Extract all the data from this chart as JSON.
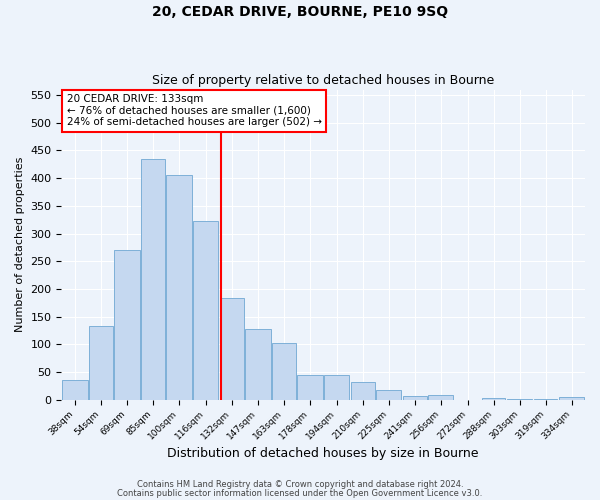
{
  "title": "20, CEDAR DRIVE, BOURNE, PE10 9SQ",
  "subtitle": "Size of property relative to detached houses in Bourne",
  "xlabel": "Distribution of detached houses by size in Bourne",
  "ylabel": "Number of detached properties",
  "bar_color": "#c5d8f0",
  "bar_edge_color": "#7eb0d8",
  "reference_line_x": 133,
  "annotation_title": "20 CEDAR DRIVE: 133sqm",
  "annotation_line1": "← 76% of detached houses are smaller (1,600)",
  "annotation_line2": "24% of semi-detached houses are larger (502) →",
  "footer1": "Contains HM Land Registry data © Crown copyright and database right 2024.",
  "footer2": "Contains public sector information licensed under the Open Government Licence v3.0.",
  "bin_edges": [
    38,
    54,
    69,
    85,
    100,
    116,
    132,
    147,
    163,
    178,
    194,
    210,
    225,
    241,
    256,
    272,
    288,
    303,
    319,
    334,
    350
  ],
  "values": [
    35,
    133,
    270,
    435,
    405,
    323,
    183,
    127,
    103,
    45,
    45,
    32,
    18,
    7,
    8,
    0,
    3,
    2,
    1,
    5
  ],
  "ylim": [
    0,
    560
  ],
  "yticks": [
    0,
    50,
    100,
    150,
    200,
    250,
    300,
    350,
    400,
    450,
    500,
    550
  ],
  "background_color": "#edf3fb",
  "grid_color": "#ffffff"
}
